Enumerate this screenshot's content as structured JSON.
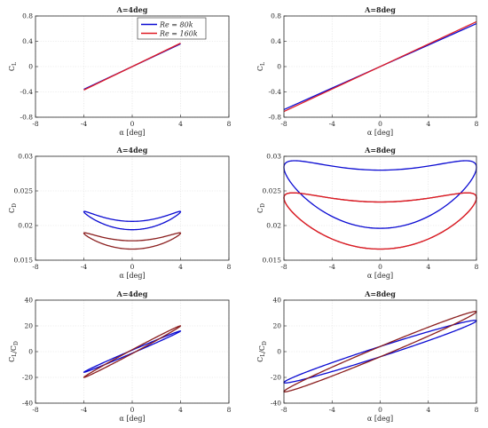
{
  "colors": {
    "re80k": "#0a0ad2",
    "re160k": "#e01b24",
    "overlap": "#8b1f1f",
    "grid": "#dcdcdc",
    "axis": "#262626"
  },
  "legend": {
    "entries": [
      "Re = 80k",
      "Re = 160k"
    ],
    "placement": "top-right of first panel"
  },
  "chart_data": [
    {
      "type": "line",
      "title": "A=4deg",
      "ylabel": "C_L",
      "xlabel": "α [deg]",
      "xlim": [
        -8,
        8
      ],
      "ylim": [
        -0.8,
        0.8
      ],
      "xticks": [
        "-8",
        "-4",
        "0",
        "4",
        "8"
      ],
      "yticks": [
        "0.8",
        "0.4",
        "0",
        "-0.4",
        "-0.8"
      ],
      "grid": true,
      "series": [
        {
          "name": "Re = 80k",
          "color": "#0a0ad2",
          "kind": "line",
          "x": [
            -4,
            4
          ],
          "y": [
            -0.36,
            0.36
          ]
        },
        {
          "name": "Re = 160k",
          "color": "#e01b24",
          "kind": "line",
          "x": [
            -4,
            4
          ],
          "y": [
            -0.37,
            0.37
          ]
        }
      ]
    },
    {
      "type": "line",
      "title": "A=8deg",
      "ylabel": "C_L",
      "xlabel": "α [deg]",
      "xlim": [
        -8,
        8
      ],
      "ylim": [
        -0.8,
        0.8
      ],
      "xticks": [
        "-8",
        "-4",
        "0",
        "4",
        "8"
      ],
      "yticks": [
        "0.8",
        "0.4",
        "0",
        "-0.4",
        "-0.8"
      ],
      "grid": true,
      "series": [
        {
          "name": "Re = 80k",
          "color": "#0a0ad2",
          "kind": "line",
          "x": [
            -8,
            8
          ],
          "y": [
            -0.68,
            0.68
          ]
        },
        {
          "name": "Re = 160k",
          "color": "#e01b24",
          "kind": "line",
          "x": [
            -8,
            8
          ],
          "y": [
            -0.71,
            0.71
          ]
        }
      ]
    },
    {
      "type": "line",
      "title": "A=4deg",
      "ylabel": "C_D",
      "xlabel": "α [deg]",
      "xlim": [
        -8,
        8
      ],
      "ylim": [
        0.015,
        0.03
      ],
      "xticks": [
        "-8",
        "-4",
        "0",
        "4",
        "8"
      ],
      "yticks": [
        "0.03",
        "0.025",
        "0.02",
        "0.015"
      ],
      "grid": true,
      "series": [
        {
          "name": "Re = 80k",
          "color": "#0a0ad2",
          "kind": "loop",
          "amp": 4,
          "y0": 0.02,
          "a": 0.002,
          "b": 0.0,
          "c": 0.0006
        },
        {
          "name": "Re = 160k",
          "color": "#8b1f1f",
          "kind": "loop",
          "amp": 4,
          "y0": 0.0172,
          "a": 0.0017,
          "b": 0.0,
          "c": 0.0006
        }
      ]
    },
    {
      "type": "line",
      "title": "A=8deg",
      "ylabel": "C_D",
      "xlabel": "α [deg]",
      "xlim": [
        -8,
        8
      ],
      "ylim": [
        0.015,
        0.03
      ],
      "xticks": [
        "-8",
        "-4",
        "0",
        "4",
        "8"
      ],
      "yticks": [
        "0.03",
        "0.025",
        "0.02",
        "0.015"
      ],
      "grid": true,
      "series": [
        {
          "name": "Re = 80k",
          "color": "#0a0ad2",
          "kind": "loop",
          "amp": 8,
          "y0": 0.0238,
          "a": 0.0046,
          "b": 0.0,
          "c": 0.0042
        },
        {
          "name": "Re = 160k",
          "color": "#8b1f1f",
          "kind": "loop",
          "amp": 8,
          "y0": 0.02,
          "a": 0.004,
          "b": 0.0,
          "c": 0.0034
        },
        {
          "name": "Re = 160k",
          "color": "#e01b24",
          "kind": "loop",
          "amp": 8,
          "y0": 0.02,
          "a": 0.004,
          "b": 0.0,
          "c": 0.0034,
          "sign": 1
        }
      ]
    },
    {
      "type": "line",
      "title": "A=4deg",
      "ylabel": "C_L/C_D",
      "xlabel": "α [deg]",
      "xlim": [
        -8,
        8
      ],
      "ylim": [
        -40,
        40
      ],
      "xticks": [
        "-8",
        "-4",
        "0",
        "4",
        "8"
      ],
      "yticks": [
        "40",
        "20",
        "0",
        "-20",
        "-40"
      ],
      "grid": true,
      "series": [
        {
          "name": "Re = 80k",
          "color": "#0a0ad2",
          "kind": "loop",
          "amp": 4,
          "y0": 0,
          "a": 0,
          "b": 16,
          "c": 1.2
        },
        {
          "name": "Re = 160k",
          "color": "#8b1f1f",
          "kind": "loop",
          "amp": 4,
          "y0": 0,
          "a": 0,
          "b": 20,
          "c": 1.5
        }
      ]
    },
    {
      "type": "line",
      "title": "A=8deg",
      "ylabel": "C_L/C_D",
      "xlabel": "α [deg]",
      "xlim": [
        -8,
        8
      ],
      "ylim": [
        -40,
        40
      ],
      "xticks": [
        "-8",
        "-4",
        "0",
        "4",
        "8"
      ],
      "yticks": [
        "40",
        "20",
        "0",
        "-20",
        "-40"
      ],
      "grid": true,
      "series": [
        {
          "name": "Re = 80k",
          "color": "#0a0ad2",
          "kind": "loop",
          "amp": 8,
          "y0": 0,
          "a": 0,
          "b": 24,
          "c": 4
        },
        {
          "name": "Re = 160k",
          "color": "#8b1f1f",
          "kind": "loop",
          "amp": 8,
          "y0": 0,
          "a": 0,
          "b": 31,
          "c": 4
        }
      ]
    }
  ]
}
